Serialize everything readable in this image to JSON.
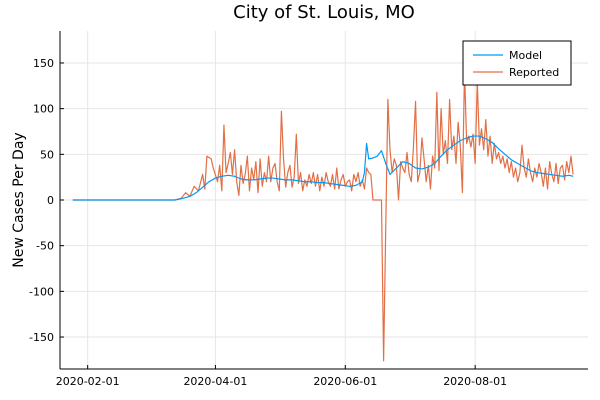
{
  "chart_data": {
    "type": "line",
    "title": "City of St. Louis, MO",
    "xlabel": "",
    "ylabel": "New Cases Per Day",
    "x_axis_type": "date",
    "xlim": [
      "2020-01-19",
      "2020-09-23"
    ],
    "ylim": [
      -185,
      185
    ],
    "x_ticks": [
      "2020-02-01",
      "2020-04-01",
      "2020-06-01",
      "2020-08-01"
    ],
    "y_ticks": [
      150,
      100,
      50,
      0,
      -50,
      -100,
      -150
    ],
    "grid": true,
    "legend_position": "top-right",
    "colors": {
      "Model": "#009AFA",
      "Reported": "#E26F46"
    },
    "series": [
      {
        "name": "Model",
        "points": [
          [
            "2020-01-25",
            0
          ],
          [
            "2020-03-13",
            0
          ],
          [
            "2020-03-17",
            2
          ],
          [
            "2020-03-20",
            4
          ],
          [
            "2020-03-23",
            8
          ],
          [
            "2020-03-26",
            14
          ],
          [
            "2020-03-29",
            20
          ],
          [
            "2020-04-01",
            24
          ],
          [
            "2020-04-04",
            26
          ],
          [
            "2020-04-07",
            27
          ],
          [
            "2020-04-10",
            26
          ],
          [
            "2020-04-13",
            23
          ],
          [
            "2020-04-16",
            22
          ],
          [
            "2020-04-19",
            22
          ],
          [
            "2020-04-22",
            23
          ],
          [
            "2020-04-25",
            24
          ],
          [
            "2020-04-28",
            24
          ],
          [
            "2020-05-01",
            23
          ],
          [
            "2020-05-04",
            22
          ],
          [
            "2020-05-07",
            22
          ],
          [
            "2020-05-10",
            21
          ],
          [
            "2020-05-13",
            20
          ],
          [
            "2020-05-16",
            20
          ],
          [
            "2020-05-19",
            19
          ],
          [
            "2020-05-22",
            19
          ],
          [
            "2020-05-25",
            18
          ],
          [
            "2020-05-28",
            17
          ],
          [
            "2020-05-31",
            16
          ],
          [
            "2020-06-03",
            15
          ],
          [
            "2020-06-06",
            16
          ],
          [
            "2020-06-09",
            20
          ],
          [
            "2020-06-10",
            30
          ],
          [
            "2020-06-11",
            62
          ],
          [
            "2020-06-12",
            45
          ],
          [
            "2020-06-14",
            46
          ],
          [
            "2020-06-16",
            48
          ],
          [
            "2020-06-18",
            54
          ],
          [
            "2020-06-20",
            40
          ],
          [
            "2020-06-22",
            28
          ],
          [
            "2020-06-25",
            35
          ],
          [
            "2020-06-28",
            42
          ],
          [
            "2020-07-01",
            40
          ],
          [
            "2020-07-04",
            35
          ],
          [
            "2020-07-07",
            34
          ],
          [
            "2020-07-10",
            36
          ],
          [
            "2020-07-13",
            40
          ],
          [
            "2020-07-16",
            48
          ],
          [
            "2020-07-19",
            55
          ],
          [
            "2020-07-22",
            60
          ],
          [
            "2020-07-25",
            65
          ],
          [
            "2020-07-28",
            68
          ],
          [
            "2020-07-31",
            70
          ],
          [
            "2020-08-03",
            70
          ],
          [
            "2020-08-06",
            67
          ],
          [
            "2020-08-09",
            63
          ],
          [
            "2020-08-12",
            56
          ],
          [
            "2020-08-15",
            50
          ],
          [
            "2020-08-18",
            44
          ],
          [
            "2020-08-21",
            40
          ],
          [
            "2020-08-24",
            36
          ],
          [
            "2020-08-27",
            32
          ],
          [
            "2020-08-30",
            30
          ],
          [
            "2020-09-02",
            29
          ],
          [
            "2020-09-05",
            28
          ],
          [
            "2020-09-08",
            27
          ],
          [
            "2020-09-11",
            26
          ],
          [
            "2020-09-14",
            27
          ],
          [
            "2020-09-16",
            26
          ]
        ]
      },
      {
        "name": "Reported",
        "points": [
          [
            "2020-01-25",
            0
          ],
          [
            "2020-03-13",
            0
          ],
          [
            "2020-03-16",
            2
          ],
          [
            "2020-03-18",
            8
          ],
          [
            "2020-03-20",
            4
          ],
          [
            "2020-03-22",
            15
          ],
          [
            "2020-03-24",
            10
          ],
          [
            "2020-03-26",
            28
          ],
          [
            "2020-03-27",
            12
          ],
          [
            "2020-03-28",
            48
          ],
          [
            "2020-03-30",
            45
          ],
          [
            "2020-03-31",
            35
          ],
          [
            "2020-04-02",
            20
          ],
          [
            "2020-04-03",
            38
          ],
          [
            "2020-04-04",
            10
          ],
          [
            "2020-04-05",
            82
          ],
          [
            "2020-04-06",
            30
          ],
          [
            "2020-04-07",
            40
          ],
          [
            "2020-04-08",
            52
          ],
          [
            "2020-04-09",
            28
          ],
          [
            "2020-04-10",
            55
          ],
          [
            "2020-04-11",
            20
          ],
          [
            "2020-04-12",
            5
          ],
          [
            "2020-04-13",
            38
          ],
          [
            "2020-04-14",
            18
          ],
          [
            "2020-04-15",
            28
          ],
          [
            "2020-04-16",
            48
          ],
          [
            "2020-04-17",
            10
          ],
          [
            "2020-04-18",
            35
          ],
          [
            "2020-04-19",
            22
          ],
          [
            "2020-04-20",
            42
          ],
          [
            "2020-04-21",
            8
          ],
          [
            "2020-04-22",
            45
          ],
          [
            "2020-04-23",
            15
          ],
          [
            "2020-04-24",
            30
          ],
          [
            "2020-04-25",
            20
          ],
          [
            "2020-04-26",
            48
          ],
          [
            "2020-04-27",
            20
          ],
          [
            "2020-04-28",
            35
          ],
          [
            "2020-04-29",
            40
          ],
          [
            "2020-04-30",
            20
          ],
          [
            "2020-05-01",
            10
          ],
          [
            "2020-05-02",
            97
          ],
          [
            "2020-05-03",
            45
          ],
          [
            "2020-05-04",
            14
          ],
          [
            "2020-05-05",
            30
          ],
          [
            "2020-05-06",
            38
          ],
          [
            "2020-05-07",
            14
          ],
          [
            "2020-05-08",
            25
          ],
          [
            "2020-05-09",
            72
          ],
          [
            "2020-05-10",
            18
          ],
          [
            "2020-05-11",
            30
          ],
          [
            "2020-05-12",
            10
          ],
          [
            "2020-05-13",
            22
          ],
          [
            "2020-05-14",
            15
          ],
          [
            "2020-05-15",
            28
          ],
          [
            "2020-05-16",
            18
          ],
          [
            "2020-05-17",
            30
          ],
          [
            "2020-05-18",
            15
          ],
          [
            "2020-05-19",
            28
          ],
          [
            "2020-05-20",
            10
          ],
          [
            "2020-05-21",
            25
          ],
          [
            "2020-05-22",
            15
          ],
          [
            "2020-05-23",
            30
          ],
          [
            "2020-05-24",
            20
          ],
          [
            "2020-05-25",
            15
          ],
          [
            "2020-05-26",
            28
          ],
          [
            "2020-05-27",
            12
          ],
          [
            "2020-05-28",
            35
          ],
          [
            "2020-05-29",
            12
          ],
          [
            "2020-05-30",
            22
          ],
          [
            "2020-05-31",
            28
          ],
          [
            "2020-06-01",
            15
          ],
          [
            "2020-06-02",
            20
          ],
          [
            "2020-06-03",
            22
          ],
          [
            "2020-06-04",
            10
          ],
          [
            "2020-06-05",
            28
          ],
          [
            "2020-06-06",
            20
          ],
          [
            "2020-06-07",
            30
          ],
          [
            "2020-06-08",
            15
          ],
          [
            "2020-06-09",
            22
          ],
          [
            "2020-06-10",
            12
          ],
          [
            "2020-06-11",
            35
          ],
          [
            "2020-06-12",
            30
          ],
          [
            "2020-06-13",
            28
          ],
          [
            "2020-06-14",
            0
          ],
          [
            "2020-06-15",
            0
          ],
          [
            "2020-06-16",
            0
          ],
          [
            "2020-06-17",
            0
          ],
          [
            "2020-06-18",
            0
          ],
          [
            "2020-06-19",
            -176
          ],
          [
            "2020-06-20",
            -30
          ],
          [
            "2020-06-21",
            110
          ],
          [
            "2020-06-22",
            55
          ],
          [
            "2020-06-23",
            30
          ],
          [
            "2020-06-24",
            45
          ],
          [
            "2020-06-25",
            38
          ],
          [
            "2020-06-26",
            0
          ],
          [
            "2020-06-27",
            42
          ],
          [
            "2020-06-28",
            35
          ],
          [
            "2020-06-29",
            30
          ],
          [
            "2020-06-30",
            52
          ],
          [
            "2020-07-01",
            28
          ],
          [
            "2020-07-02",
            20
          ],
          [
            "2020-07-03",
            58
          ],
          [
            "2020-07-04",
            108
          ],
          [
            "2020-07-05",
            20
          ],
          [
            "2020-07-06",
            30
          ],
          [
            "2020-07-07",
            68
          ],
          [
            "2020-07-08",
            45
          ],
          [
            "2020-07-09",
            20
          ],
          [
            "2020-07-10",
            38
          ],
          [
            "2020-07-11",
            12
          ],
          [
            "2020-07-12",
            48
          ],
          [
            "2020-07-13",
            35
          ],
          [
            "2020-07-14",
            118
          ],
          [
            "2020-07-15",
            32
          ],
          [
            "2020-07-16",
            100
          ],
          [
            "2020-07-17",
            50
          ],
          [
            "2020-07-18",
            65
          ],
          [
            "2020-07-19",
            40
          ],
          [
            "2020-07-20",
            110
          ],
          [
            "2020-07-21",
            55
          ],
          [
            "2020-07-22",
            70
          ],
          [
            "2020-07-23",
            40
          ],
          [
            "2020-07-24",
            85
          ],
          [
            "2020-07-25",
            60
          ],
          [
            "2020-07-26",
            8
          ],
          [
            "2020-07-27",
            142
          ],
          [
            "2020-07-28",
            62
          ],
          [
            "2020-07-29",
            70
          ],
          [
            "2020-07-30",
            58
          ],
          [
            "2020-07-31",
            72
          ],
          [
            "2020-08-01",
            40
          ],
          [
            "2020-08-02",
            130
          ],
          [
            "2020-08-03",
            60
          ],
          [
            "2020-08-04",
            78
          ],
          [
            "2020-08-05",
            55
          ],
          [
            "2020-08-06",
            88
          ],
          [
            "2020-08-07",
            48
          ],
          [
            "2020-08-08",
            70
          ],
          [
            "2020-08-09",
            40
          ],
          [
            "2020-08-10",
            62
          ],
          [
            "2020-08-11",
            45
          ],
          [
            "2020-08-12",
            52
          ],
          [
            "2020-08-13",
            40
          ],
          [
            "2020-08-14",
            48
          ],
          [
            "2020-08-15",
            35
          ],
          [
            "2020-08-16",
            45
          ],
          [
            "2020-08-17",
            30
          ],
          [
            "2020-08-18",
            42
          ],
          [
            "2020-08-19",
            25
          ],
          [
            "2020-08-20",
            35
          ],
          [
            "2020-08-21",
            20
          ],
          [
            "2020-08-22",
            30
          ],
          [
            "2020-08-23",
            60
          ],
          [
            "2020-08-24",
            35
          ],
          [
            "2020-08-25",
            25
          ],
          [
            "2020-08-26",
            45
          ],
          [
            "2020-08-27",
            30
          ],
          [
            "2020-08-28",
            20
          ],
          [
            "2020-08-29",
            35
          ],
          [
            "2020-08-30",
            25
          ],
          [
            "2020-08-31",
            40
          ],
          [
            "2020-09-01",
            30
          ],
          [
            "2020-09-02",
            15
          ],
          [
            "2020-09-03",
            35
          ],
          [
            "2020-09-04",
            12
          ],
          [
            "2020-09-05",
            42
          ],
          [
            "2020-09-06",
            28
          ],
          [
            "2020-09-07",
            20
          ],
          [
            "2020-09-08",
            40
          ],
          [
            "2020-09-09",
            18
          ],
          [
            "2020-09-10",
            35
          ],
          [
            "2020-09-11",
            38
          ],
          [
            "2020-09-12",
            22
          ],
          [
            "2020-09-13",
            42
          ],
          [
            "2020-09-14",
            30
          ],
          [
            "2020-09-15",
            48
          ],
          [
            "2020-09-16",
            28
          ]
        ]
      }
    ]
  }
}
